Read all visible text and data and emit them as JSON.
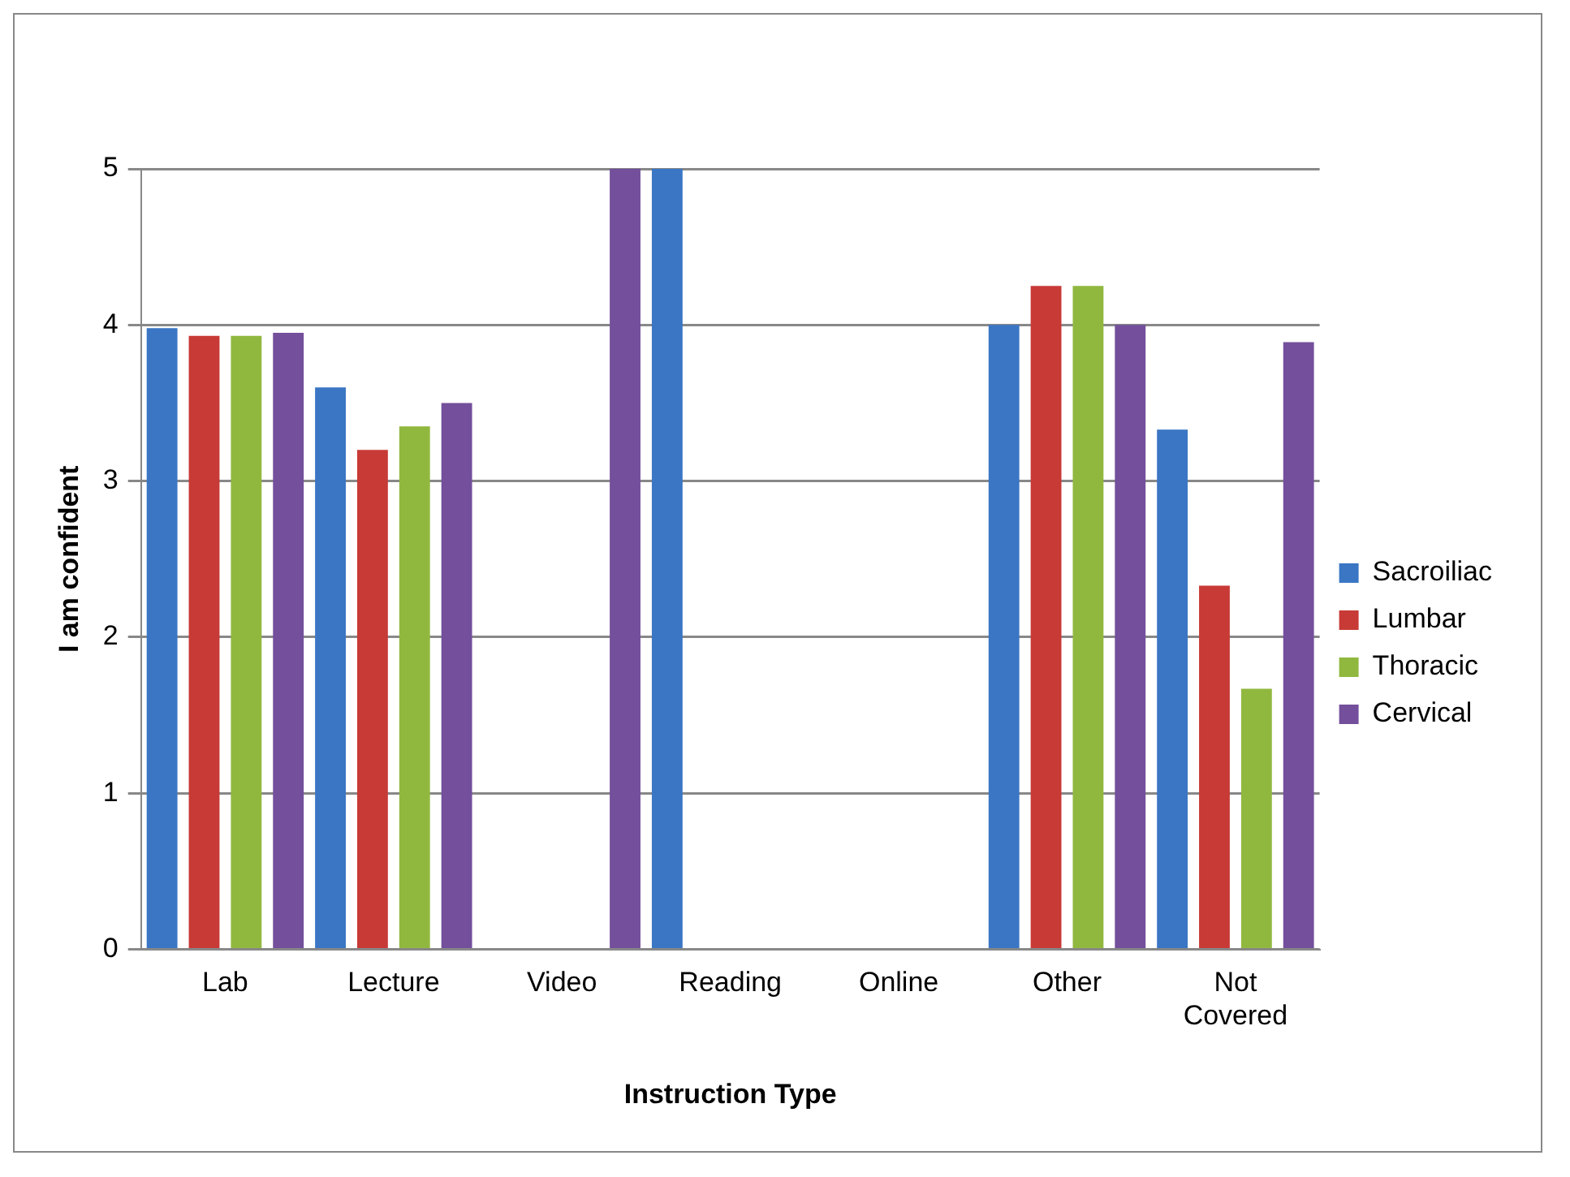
{
  "chart_data": {
    "type": "bar",
    "xlabel": "Instruction Type",
    "ylabel": "I am confident",
    "categories": [
      "Lab",
      "Lecture",
      "Video",
      "Reading",
      "Online",
      "Other",
      "Not Covered"
    ],
    "series": [
      {
        "name": "Sacroiliac",
        "color": "#3a76c4",
        "values": [
          3.98,
          3.6,
          0,
          5,
          0,
          4,
          3.33
        ]
      },
      {
        "name": "Lumbar",
        "color": "#c83a36",
        "values": [
          3.93,
          3.2,
          0,
          0,
          0,
          4.25,
          2.33
        ]
      },
      {
        "name": "Thoracic",
        "color": "#90b83f",
        "values": [
          3.93,
          3.35,
          0,
          0,
          0,
          4.25,
          1.67
        ]
      },
      {
        "name": "Cervical",
        "color": "#734f9c",
        "values": [
          3.95,
          3.5,
          5,
          0,
          0,
          4,
          3.89
        ]
      }
    ],
    "ylim": [
      0,
      5
    ],
    "yticks": [
      0,
      1,
      2,
      3,
      4,
      5
    ],
    "grid": "y",
    "legend": "right"
  }
}
